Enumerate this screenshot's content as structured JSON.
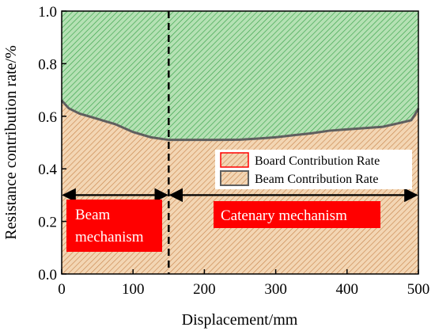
{
  "chart_data": {
    "type": "area",
    "title": "",
    "xlabel": "Displacement/mm",
    "ylabel": "Resistance contribution rate/%",
    "xlim": [
      0,
      500
    ],
    "ylim": [
      0,
      1.0
    ],
    "x_ticks": [
      0,
      100,
      200,
      300,
      400,
      500
    ],
    "y_ticks": [
      0.0,
      0.2,
      0.4,
      0.6,
      0.8,
      1.0
    ],
    "x_tick_labels": [
      "0",
      "100",
      "200",
      "300",
      "400",
      "500"
    ],
    "y_tick_labels": [
      "0.0",
      "0.2",
      "0.4",
      "0.6",
      "0.8",
      "1.0"
    ],
    "grid": false,
    "legend_position": "right",
    "x": [
      0,
      10,
      25,
      50,
      75,
      100,
      125,
      150,
      175,
      200,
      225,
      250,
      275,
      300,
      325,
      350,
      375,
      400,
      425,
      450,
      475,
      490,
      495,
      500
    ],
    "series": [
      {
        "name": "Board Contribution Rate",
        "color": "#3aa34a",
        "fill": "#b5e1b4",
        "values": [
          0.34,
          0.37,
          0.39,
          0.41,
          0.43,
          0.46,
          0.48,
          0.49,
          0.49,
          0.49,
          0.49,
          0.489,
          0.485,
          0.48,
          0.472,
          0.465,
          0.455,
          0.45,
          0.445,
          0.44,
          0.425,
          0.415,
          0.395,
          0.37
        ]
      },
      {
        "name": "Beam Contribution Rate",
        "color": "#5f5f5f",
        "fill": "#f3d6b4",
        "values": [
          0.66,
          0.63,
          0.61,
          0.59,
          0.57,
          0.54,
          0.52,
          0.51,
          0.51,
          0.51,
          0.51,
          0.511,
          0.515,
          0.52,
          0.528,
          0.535,
          0.545,
          0.55,
          0.555,
          0.56,
          0.575,
          0.585,
          0.605,
          0.63
        ]
      }
    ],
    "annotations": {
      "divider_x": 150,
      "arrow_y": 0.3,
      "beam_label_lines": [
        "Beam",
        "mechanism"
      ],
      "catenary_label": "Catenary mechanism",
      "box_color": "#ff0000",
      "divider_color": "#000000"
    }
  }
}
